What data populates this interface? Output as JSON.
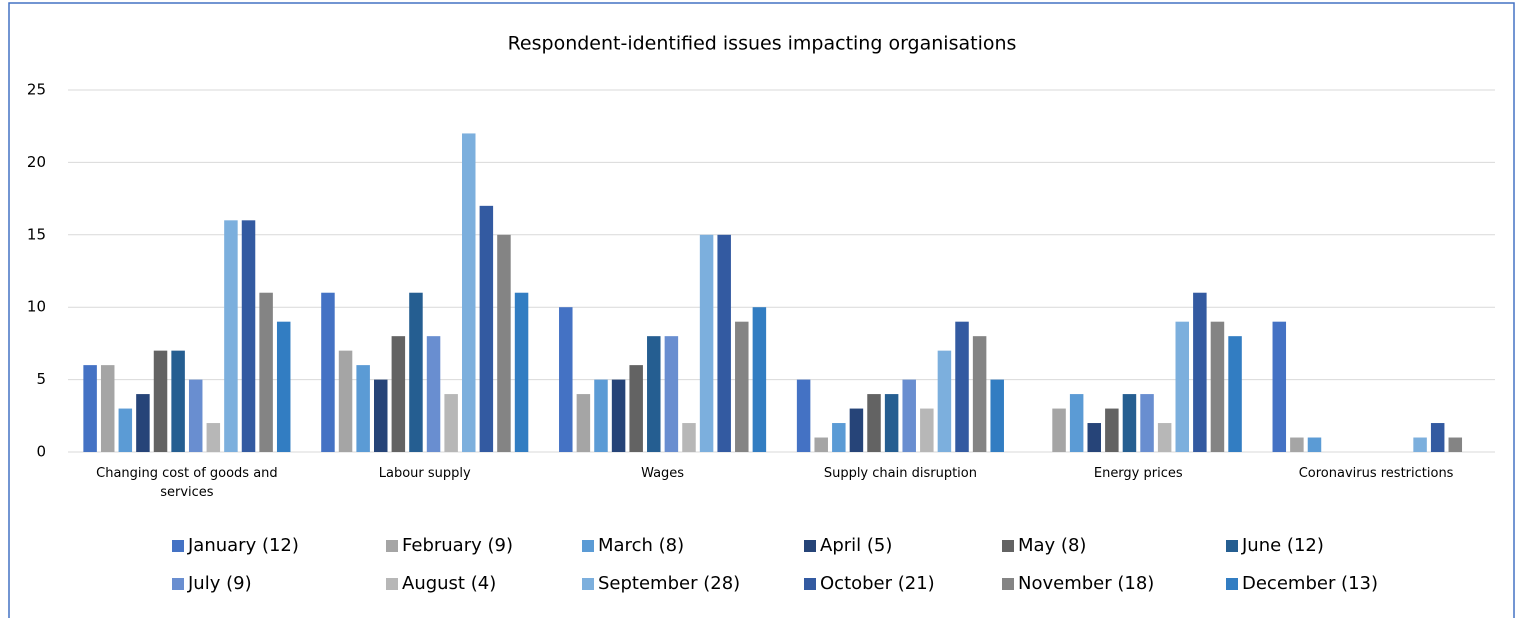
{
  "chart_data": {
    "type": "bar",
    "title": "Respondent-identified issues impacting organisations",
    "categories": [
      "Changing cost of goods and services",
      "Labour supply",
      "Wages",
      "Supply chain disruption",
      "Energy prices",
      "Coronavirus restrictions"
    ],
    "series": [
      {
        "name": "January (12)",
        "color": "#4472c4",
        "values": [
          6,
          11,
          10,
          5,
          0,
          9
        ]
      },
      {
        "name": "February (9)",
        "color": "#a5a5a5",
        "values": [
          6,
          7,
          4,
          1,
          3,
          1
        ]
      },
      {
        "name": "March (8)",
        "color": "#5b9bd5",
        "values": [
          3,
          6,
          5,
          2,
          4,
          1
        ]
      },
      {
        "name": "April (5)",
        "color": "#264478",
        "values": [
          4,
          5,
          5,
          3,
          2,
          0
        ]
      },
      {
        "name": "May (8)",
        "color": "#636363",
        "values": [
          7,
          8,
          6,
          4,
          3,
          0
        ]
      },
      {
        "name": "June (12)",
        "color": "#255e91",
        "values": [
          7,
          11,
          8,
          4,
          4,
          0
        ]
      },
      {
        "name": "July (9)",
        "color": "#698ed0",
        "values": [
          5,
          8,
          8,
          5,
          4,
          0
        ]
      },
      {
        "name": "August (4)",
        "color": "#b7b7b7",
        "values": [
          2,
          4,
          2,
          3,
          2,
          0
        ]
      },
      {
        "name": "September (28)",
        "color": "#7cafdd",
        "values": [
          16,
          22,
          15,
          7,
          9,
          1
        ]
      },
      {
        "name": "October (21)",
        "color": "#335aa1",
        "values": [
          16,
          17,
          15,
          9,
          11,
          2
        ]
      },
      {
        "name": "November (18)",
        "color": "#848484",
        "values": [
          11,
          15,
          9,
          8,
          9,
          1
        ]
      },
      {
        "name": "December (13)",
        "color": "#327dc2",
        "values": [
          9,
          11,
          10,
          5,
          8,
          0
        ]
      }
    ],
    "ylim": [
      0,
      25
    ],
    "yticks": [
      0,
      5,
      10,
      15,
      20,
      25
    ],
    "grid": true,
    "legend": "bottom"
  }
}
